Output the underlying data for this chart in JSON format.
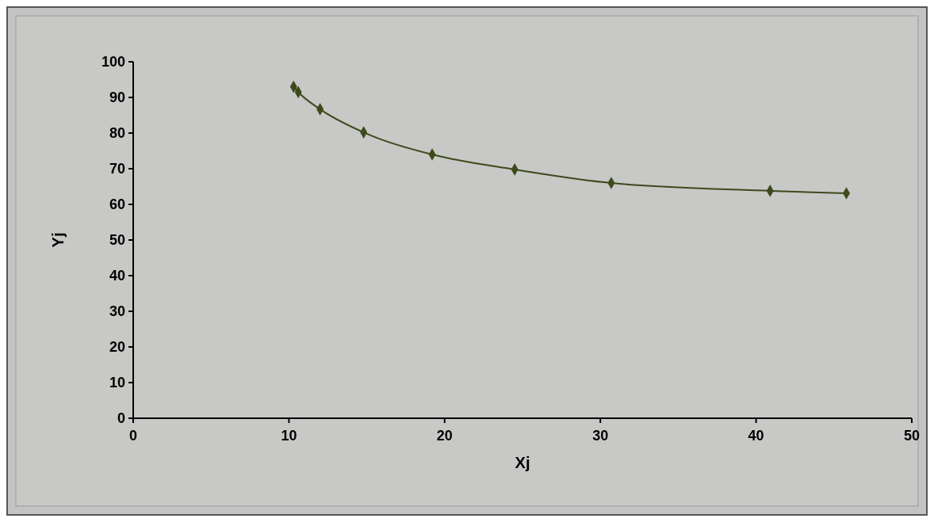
{
  "chart_data": {
    "type": "line",
    "xlabel": "Xj",
    "ylabel": "Yj",
    "x": [
      10.3,
      10.6,
      12.0,
      14.8,
      19.2,
      24.5,
      30.7,
      40.9,
      45.8
    ],
    "series": [
      {
        "color": "#3c4a1c",
        "values": [
          93.0,
          91.5,
          86.7,
          80.2,
          74.0,
          69.8,
          66.0,
          63.8,
          63.1
        ]
      }
    ],
    "xlim": [
      0,
      50
    ],
    "xticks": [
      0,
      10,
      20,
      30,
      40,
      50
    ],
    "ylim": [
      0,
      100
    ],
    "yticks": [
      0,
      10,
      20,
      30,
      40,
      50,
      60,
      70,
      80,
      90,
      100
    ],
    "marker": "diamond",
    "line_style": "solid",
    "grid": false
  }
}
